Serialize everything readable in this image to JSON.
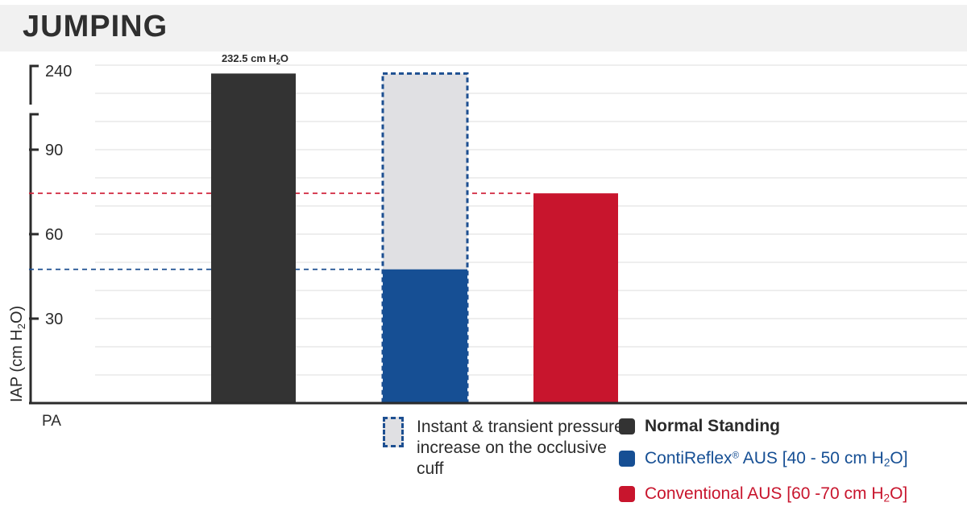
{
  "header": {
    "title": "JUMPING"
  },
  "chart_data": {
    "type": "bar",
    "ylabel": "IAP (cm H2O)",
    "ylabel_parts": {
      "a": "IAP (cm H",
      "b": "2",
      "c": "O)"
    },
    "x_origin_label": "PA",
    "y_ticks": [
      30,
      60,
      90,
      240
    ],
    "y_axis_break": true,
    "ylim": [
      0,
      240
    ],
    "grid": true,
    "bars": [
      {
        "name": "Normal Standing",
        "value": 232.5,
        "color": "#333333",
        "label": {
          "num": "232.5 cm",
          "h": "H",
          "sub": "2",
          "o": "O"
        }
      },
      {
        "name": "ContiReflex AUS",
        "value": 47.5,
        "color": "#164f94",
        "transient_value": 232.5,
        "transient_color": "#e0e0e3"
      },
      {
        "name": "Conventional AUS",
        "value": 74.5,
        "color": "#c8152d"
      }
    ],
    "reference_lines": [
      {
        "value": 74.5,
        "color": "#d0223a"
      },
      {
        "value": 47.5,
        "color": "#1d4f91"
      }
    ]
  },
  "legend": {
    "transient": "Instant & transient pressure increase on the occlusive cuff",
    "items": [
      {
        "key": "normal",
        "text": "Normal Standing",
        "color": "#333333",
        "text_color": "#2b2b2b"
      },
      {
        "key": "contireflex",
        "text": "ContiReflex",
        "sup": "®",
        "rest": " AUS [40 - 50 cm H",
        "sub": "2",
        "end": "O]",
        "color": "#164f94",
        "text_color": "#164f94"
      },
      {
        "key": "conventional",
        "text": "Conventional AUS [60 -70 cm H",
        "sub": "2",
        "end": "O]",
        "color": "#c8152d",
        "text_color": "#c8152d"
      }
    ]
  }
}
